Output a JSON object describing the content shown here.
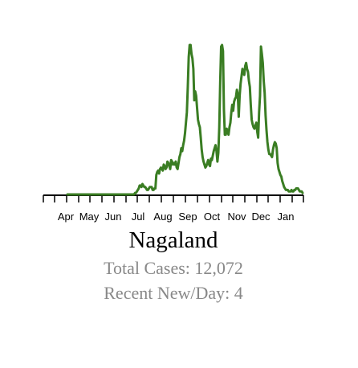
{
  "colors": {
    "line": "#3a7d23",
    "axis": "#000000",
    "stats_text": "#888888"
  },
  "state": "Nagaland",
  "stats": {
    "total_label": "Total Cases: 12,072",
    "recent_label": "Recent New/Day: 4"
  },
  "chart_data": {
    "type": "line",
    "title": "Nagaland",
    "xlabel": "",
    "ylabel": "",
    "tick_labels": [
      "Apr",
      "May",
      "Jun",
      "Jul",
      "Aug",
      "Sep",
      "Oct",
      "Nov",
      "Dec",
      "Jan"
    ],
    "ylim": [
      0,
      100
    ],
    "grid": false,
    "series": [
      {
        "values": [
          0,
          0,
          0,
          0,
          0,
          0,
          0,
          0,
          0,
          0,
          0,
          0,
          0,
          0,
          0,
          0,
          0,
          0,
          0,
          0,
          0,
          0,
          0,
          0,
          0,
          0,
          0,
          0,
          0,
          0,
          0,
          0,
          0,
          0,
          0,
          0,
          0,
          0,
          0,
          0,
          0,
          0,
          0,
          0,
          0,
          0,
          0,
          0,
          0,
          0,
          0,
          0,
          0,
          0,
          0,
          0,
          0,
          0,
          0,
          0,
          0,
          0,
          0,
          0,
          0,
          0,
          0,
          0,
          0,
          0,
          0,
          0,
          0,
          1,
          1,
          2,
          3,
          4,
          6,
          6,
          5,
          7,
          6,
          5,
          5,
          4,
          3,
          3,
          4,
          5,
          5,
          5,
          3,
          3,
          4,
          4,
          13,
          15,
          16,
          14,
          17,
          18,
          17,
          16,
          20,
          19,
          17,
          18,
          22,
          21,
          19,
          17,
          23,
          22,
          20,
          21,
          20,
          22,
          18,
          17,
          21,
          25,
          27,
          31,
          29,
          33,
          36,
          41,
          48,
          55,
          72,
          92,
          100,
          100,
          94,
          91,
          84,
          63,
          69,
          66,
          58,
          50,
          47,
          45,
          38,
          30,
          25,
          22,
          20,
          18,
          19,
          21,
          23,
          20,
          19,
          24,
          23,
          26,
          29,
          31,
          33,
          29,
          22,
          28,
          45,
          75,
          99,
          100,
          96,
          57,
          40,
          40,
          44,
          42,
          40,
          45,
          48,
          55,
          60,
          56,
          62,
          64,
          65,
          70,
          67,
          52,
          66,
          74,
          79,
          84,
          81,
          80,
          86,
          88,
          84,
          82,
          76,
          72,
          60,
          50,
          47,
          45,
          44,
          46,
          48,
          42,
          38,
          55,
          66,
          99,
          94,
          88,
          76,
          68,
          53,
          43,
          35,
          30,
          27,
          27,
          26,
          25,
          30,
          33,
          35,
          34,
          31,
          21,
          17,
          15,
          13,
          12,
          9,
          7,
          5,
          4,
          3,
          3,
          3,
          2,
          2,
          2,
          3,
          2,
          2,
          3,
          3,
          4,
          4,
          4,
          3,
          2,
          2,
          2,
          1
        ]
      }
    ]
  }
}
